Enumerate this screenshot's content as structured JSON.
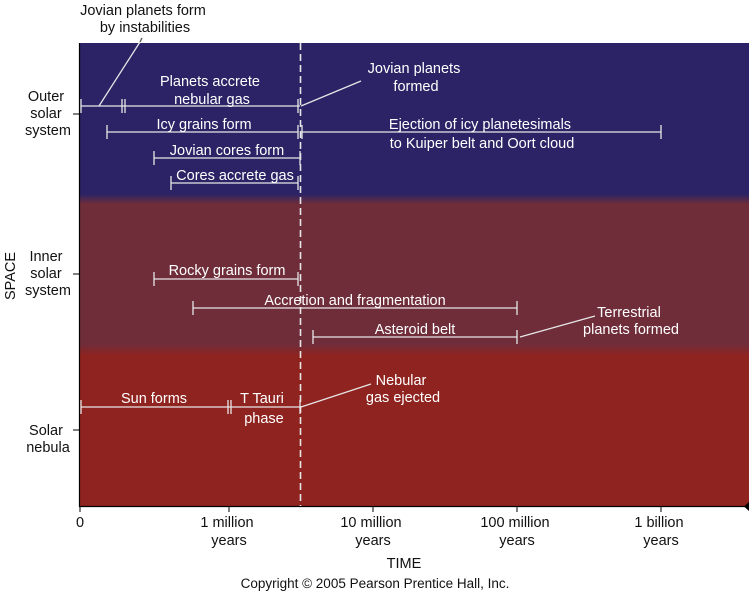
{
  "diagram": {
    "y_axis_label": "SPACE",
    "x_axis_label": "TIME",
    "copyright": "Copyright © 2005 Pearson Prentice Hall, Inc.",
    "regions": [
      {
        "key": "outer",
        "lines": [
          "Outer",
          "solar",
          "system"
        ],
        "color": "#2b2365"
      },
      {
        "key": "inner",
        "lines": [
          "Inner",
          "solar",
          "system"
        ],
        "color": "#6f2d3a"
      },
      {
        "key": "nebula",
        "lines": [
          "Solar",
          "nebula"
        ],
        "color": "#8f231f"
      }
    ],
    "x_ticks": [
      {
        "lines": [
          "0"
        ]
      },
      {
        "lines": [
          "1 million",
          "years"
        ]
      },
      {
        "lines": [
          "10 million",
          "years"
        ]
      },
      {
        "lines": [
          "100 million",
          "years"
        ]
      },
      {
        "lines": [
          "1 billion",
          "years"
        ]
      }
    ],
    "events": [
      {
        "key": "jovian-instabilities",
        "lines": [
          "Jovian planets form",
          "by instabilities"
        ]
      },
      {
        "key": "planets-accrete",
        "lines": [
          "Planets accrete",
          "nebular gas"
        ]
      },
      {
        "key": "jovian-formed",
        "lines": [
          "Jovian planets",
          "formed"
        ]
      },
      {
        "key": "icy-grains",
        "lines": [
          "Icy grains form"
        ]
      },
      {
        "key": "ejection-icy",
        "lines": [
          "Ejection of icy planetesimals",
          "to Kuiper belt and Oort cloud"
        ]
      },
      {
        "key": "jovian-cores",
        "lines": [
          "Jovian cores form"
        ]
      },
      {
        "key": "cores-accrete",
        "lines": [
          "Cores accrete gas"
        ]
      },
      {
        "key": "rocky-grains",
        "lines": [
          "Rocky grains form"
        ]
      },
      {
        "key": "accretion-fragmentation",
        "lines": [
          "Accretion and fragmentation"
        ]
      },
      {
        "key": "asteroid-belt",
        "lines": [
          "Asteroid belt"
        ]
      },
      {
        "key": "terrestrial-formed",
        "lines": [
          "Terrestrial",
          "planets formed"
        ]
      },
      {
        "key": "sun-forms",
        "lines": [
          "Sun forms"
        ]
      },
      {
        "key": "t-tauri",
        "lines": [
          "T Tauri",
          "phase"
        ]
      },
      {
        "key": "nebular-ejected",
        "lines": [
          "Nebular",
          "gas ejected"
        ]
      }
    ],
    "colors": {
      "outer_band": "#2b2365",
      "inner_band": "#6f2d3a",
      "nebula_band": "#8f231f",
      "line_on_dark": "#e6e6e6",
      "text_on_dark": "#ffffff"
    }
  }
}
